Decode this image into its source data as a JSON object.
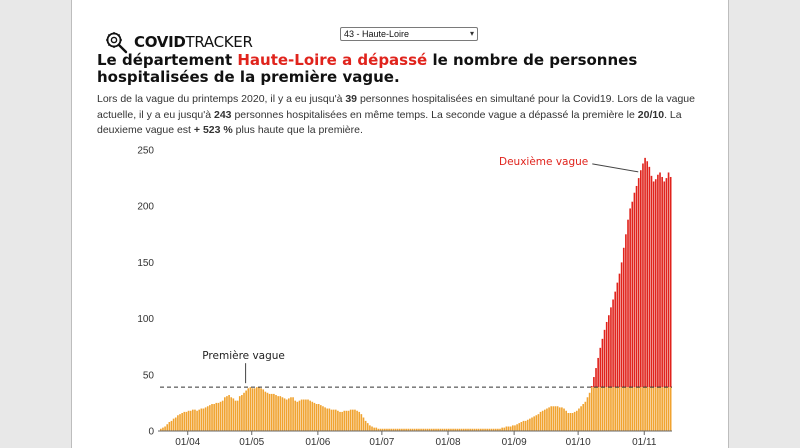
{
  "app": {
    "logo_bold": "COVID",
    "logo_light": "TRACKER",
    "logo_icon": "virus-magnifier-icon",
    "department_select": "43 - Haute-Loire"
  },
  "headline": {
    "before": "Le département ",
    "highlight": "Haute-Loire a dépassé",
    "after": " le nombre de personnes hospitalisées de la première vague."
  },
  "summary": {
    "p1": "Lors de la vague du printemps 2020, il y a eu jusqu'à ",
    "first_peak": "39",
    "p2": " personnes hospitalisées en simultané pour la Covid19. Lors de la vague actuelle, il y a eu jusqu'à ",
    "second_peak": "243",
    "p3": " personnes hospitalisées en même temps. La seconde vague a dépassé la première le ",
    "date_exceeded": "20/10",
    "p4": ". La deuxieme vague est ",
    "increase": "+ 523 %",
    "p5": " plus haute que la première."
  },
  "colors": {
    "accent": "#e0231c",
    "orange": "#f0a330",
    "red": "#e0231c"
  },
  "chart_data": {
    "type": "bar",
    "x_start": "2020-03-19",
    "x_end": "2020-11-16",
    "ylim": [
      0,
      250
    ],
    "yticks": [
      0,
      50,
      100,
      150,
      200,
      250
    ],
    "xticks": [
      {
        "date": "2020-04-01",
        "label": "01/04"
      },
      {
        "date": "2020-05-01",
        "label": "01/05"
      },
      {
        "date": "2020-06-01",
        "label": "01/06"
      },
      {
        "date": "2020-07-01",
        "label": "01/07"
      },
      {
        "date": "2020-08-01",
        "label": "01/08"
      },
      {
        "date": "2020-09-01",
        "label": "01/09"
      },
      {
        "date": "2020-10-01",
        "label": "01/10"
      },
      {
        "date": "2020-11-01",
        "label": "01/11"
      }
    ],
    "first_wave_peak": 39,
    "annotations": {
      "first": "Première vague",
      "second": "Deuxième vague"
    },
    "values": [
      2,
      3,
      4,
      6,
      8,
      9,
      11,
      12,
      14,
      15,
      16,
      17,
      17,
      18,
      18,
      19,
      19,
      18,
      19,
      20,
      20,
      21,
      22,
      23,
      24,
      24,
      25,
      25,
      26,
      27,
      30,
      31,
      32,
      30,
      29,
      27,
      27,
      31,
      32,
      34,
      36,
      38,
      39,
      38,
      38,
      39,
      39,
      38,
      37,
      35,
      34,
      33,
      33,
      33,
      32,
      31,
      31,
      30,
      29,
      28,
      29,
      30,
      30,
      27,
      26,
      27,
      28,
      28,
      28,
      28,
      27,
      26,
      25,
      24,
      24,
      23,
      22,
      21,
      20,
      20,
      19,
      19,
      19,
      18,
      17,
      17,
      18,
      18,
      18,
      19,
      19,
      19,
      18,
      17,
      15,
      12,
      9,
      7,
      5,
      4,
      3,
      3,
      2,
      2,
      2,
      2,
      2,
      2,
      2,
      2,
      2,
      2,
      2,
      2,
      2,
      2,
      2,
      2,
      2,
      2,
      2,
      2,
      2,
      2,
      2,
      2,
      2,
      2,
      2,
      2,
      2,
      2,
      2,
      2,
      2,
      2,
      2,
      2,
      2,
      2,
      2,
      2,
      2,
      2,
      2,
      2,
      2,
      2,
      2,
      2,
      2,
      2,
      2,
      2,
      2,
      2,
      2,
      2,
      2,
      2,
      3,
      3,
      4,
      4,
      4,
      5,
      5,
      6,
      7,
      8,
      9,
      9,
      10,
      11,
      12,
      13,
      14,
      15,
      17,
      18,
      19,
      20,
      21,
      22,
      22,
      22,
      22,
      21,
      21,
      20,
      18,
      16,
      16,
      16,
      17,
      18,
      20,
      22,
      24,
      26,
      30,
      34,
      40,
      48,
      56,
      65,
      74,
      82,
      90,
      97,
      103,
      110,
      117,
      124,
      132,
      140,
      150,
      163,
      175,
      188,
      198,
      204,
      212,
      218,
      225,
      232,
      238,
      243,
      240,
      235,
      227,
      222,
      224,
      228,
      230,
      226,
      222,
      225,
      230,
      226
    ]
  }
}
